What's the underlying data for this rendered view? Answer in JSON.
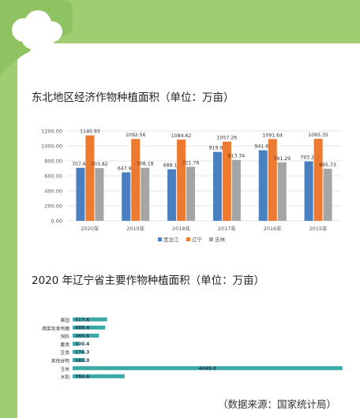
{
  "chart_data": [
    {
      "type": "bar",
      "title": "东北地区经济作物种植面积（单位：万亩）",
      "categories": [
        "2020年",
        "2019年",
        "2018年",
        "2017年",
        "2016年",
        "2015年"
      ],
      "series": [
        {
          "name": "黑龙江",
          "color": "#4a7fc0",
          "values": [
            707.63,
            647.97,
            688.18,
            919.96,
            941.67,
            793.2
          ],
          "labels": [
            "707.63",
            "647.97",
            "688.18",
            "919.96",
            "941.67",
            "793.20"
          ]
        },
        {
          "name": "辽宁",
          "color": "#ec7a30",
          "values": [
            1140.93,
            1092.56,
            1084.62,
            1057.26,
            1091.64,
            1095.35
          ],
          "labels": [
            "1140.93",
            "1092.56",
            "1084.62",
            "1057.26",
            "1091.64",
            "1095.35"
          ]
        },
        {
          "name": "吉林",
          "color": "#a5a5a5",
          "values": [
            703.82,
            708.18,
            721.76,
            813.34,
            781.29,
            695.73
          ],
          "labels": [
            "703.82",
            "708.18",
            "721.76",
            "813.34",
            "781.29",
            "695.73"
          ]
        }
      ],
      "yticks": [
        "0.00",
        "200.00",
        "400.00",
        "600.00",
        "800.00",
        "1000.00",
        "1200.00"
      ],
      "ylim": [
        0,
        1200
      ],
      "grid": true,
      "legend": "bottom"
    },
    {
      "type": "bar",
      "orientation": "horizontal",
      "title": "2020 年辽宁省主要作物种植面积（单位：万亩）",
      "categories": [
        "果园",
        "蔬菜及食用菌",
        "饲料",
        "薯类",
        "豆类",
        "其他谷物",
        "玉米",
        "水稻"
      ],
      "values": [
        517.6,
        488.4,
        395.6,
        100.4,
        174.3,
        182.0,
        4049.0,
        780.6
      ],
      "labels": [
        "517.6",
        "488.4",
        "395.6",
        "100.4",
        "174.3",
        "182.0",
        "4049.0",
        "780.6"
      ],
      "color": "#3aa9a6",
      "xlim": [
        0,
        4100
      ]
    }
  ],
  "source": "（数据来源：国家统计局）"
}
